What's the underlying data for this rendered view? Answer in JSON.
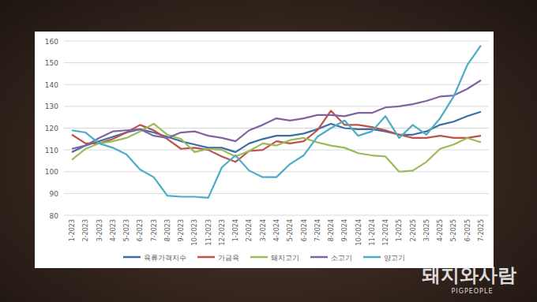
{
  "chart_data": {
    "type": "line",
    "categories": [
      "1-2023",
      "2-2023",
      "3-2023",
      "4-2023",
      "5-2023",
      "6-2023",
      "7-2023",
      "8-2023",
      "9-2023",
      "10-2023",
      "11-2023",
      "12-2023",
      "1-2024",
      "2-2024",
      "3-2024",
      "4-2024",
      "5-2024",
      "6-2024",
      "7-2024",
      "8-2024",
      "9-2024",
      "10-2024",
      "11-2024",
      "12-2024",
      "1-2025",
      "2-2025",
      "3-2025",
      "4-2025",
      "5-2025",
      "6-2025",
      "7-2025"
    ],
    "series": [
      {
        "name": "육류가격지수",
        "color": "#3c6ea5",
        "values": [
          109,
          112,
          114,
          116,
          118,
          119.5,
          118,
          116,
          114,
          112.5,
          111,
          111,
          109,
          113,
          115,
          116.5,
          116.5,
          117.5,
          119.5,
          122,
          120,
          119.5,
          119.5,
          118.5,
          117,
          117,
          118.5,
          121.5,
          123,
          125.5,
          127.5
        ]
      },
      {
        "name": "가금육",
        "color": "#c0504d",
        "values": [
          117,
          113,
          113,
          115,
          118,
          121.5,
          119,
          115,
          110.5,
          111,
          110,
          107,
          104.5,
          109.5,
          110,
          114,
          113,
          114,
          119,
          128,
          121.5,
          121.5,
          120.5,
          119,
          117,
          115.5,
          115.5,
          116.5,
          115.5,
          115.5,
          116.5
        ]
      },
      {
        "name": "돼지고기",
        "color": "#9bbb59",
        "values": [
          105.5,
          110.5,
          113,
          114,
          115.5,
          118.5,
          122,
          117,
          115,
          109,
          110.5,
          110,
          107,
          109.5,
          113,
          112,
          114.5,
          115.5,
          113.5,
          112,
          111,
          108.5,
          107.5,
          107,
          100,
          100.5,
          104.5,
          110.5,
          112.5,
          115.5,
          113.5
        ]
      },
      {
        "name": "소고기",
        "color": "#8064a2",
        "values": [
          110.5,
          112,
          115.5,
          118.5,
          119,
          119.5,
          116.5,
          115.5,
          118,
          118.5,
          116.5,
          115.5,
          114,
          119,
          121.5,
          124.5,
          123.5,
          124.5,
          126,
          126,
          125.5,
          127,
          127,
          129.5,
          130,
          131,
          132.5,
          134.5,
          135,
          138,
          142
        ]
      },
      {
        "name": "양고기",
        "color": "#4bacc6",
        "values": [
          119,
          118,
          113,
          111,
          108,
          101,
          97.5,
          89,
          88.5,
          88.5,
          88,
          102,
          107.5,
          100.5,
          97.5,
          97.5,
          103.5,
          107.5,
          116,
          120,
          123.5,
          116.5,
          118.5,
          125.5,
          115.5,
          121.5,
          117,
          124.5,
          134.5,
          149,
          158
        ]
      }
    ],
    "ylim": [
      80,
      160
    ],
    "yticks": [
      80,
      90,
      100,
      110,
      120,
      130,
      140,
      150,
      160
    ],
    "grid": true,
    "legend": "bottom",
    "annotations": [
      "돼지와사람",
      "PIGPEOPLE"
    ]
  }
}
